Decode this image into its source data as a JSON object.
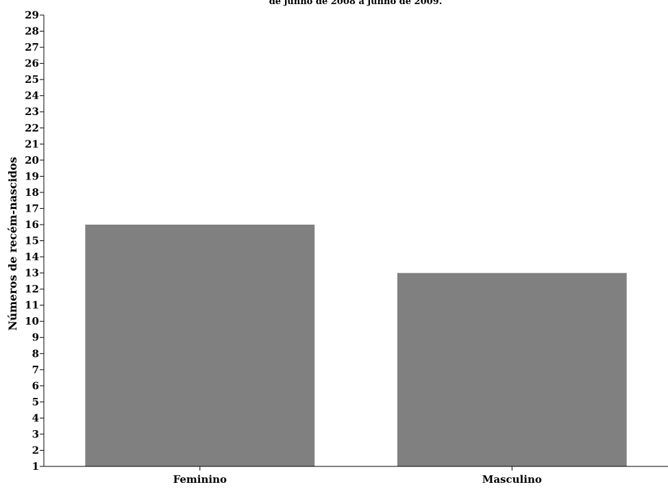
{
  "chart_data": {
    "type": "bar",
    "title": "de junho de 2008 a junho de 2009.",
    "categories": [
      "Feminino",
      "Masculino"
    ],
    "values": [
      16,
      13
    ],
    "xlabel": "",
    "ylabel": "Números de recém-nascidos",
    "ylim": [
      1,
      29
    ],
    "yticks": [
      "1",
      "2",
      "3",
      "4",
      "5",
      "6",
      "7",
      "8",
      "9",
      "10",
      "11",
      "12",
      "13",
      "14",
      "15",
      "16",
      "17",
      "18",
      "19",
      "20",
      "21",
      "22",
      "23",
      "24",
      "25",
      "26",
      "27",
      "28",
      "29"
    ],
    "grid": false,
    "legend": "none",
    "bar_color": "#808080",
    "axis_color": "#000000"
  }
}
